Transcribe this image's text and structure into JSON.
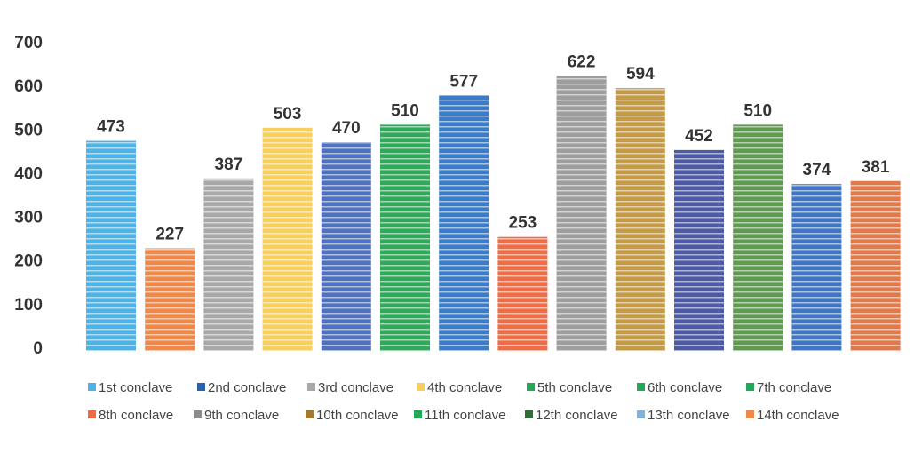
{
  "chart_data": {
    "type": "bar",
    "categories": [
      "1st conclave",
      "2nd conclave",
      "3rd conclave",
      "4th conclave",
      "5th conclave",
      "6th conclave",
      "7th conclave",
      "8th conclave",
      "9th conclave",
      "10th conclave",
      "11th conclave",
      "12th conclave",
      "13th conclave",
      "14th conclave"
    ],
    "values": [
      473,
      227,
      387,
      503,
      470,
      510,
      577,
      253,
      622,
      594,
      452,
      510,
      374,
      381
    ],
    "colors": [
      "#4db3e6",
      "#f0884a",
      "#a8a8a8",
      "#f7cf5a",
      "#4e72bd",
      "#2faa5a",
      "#3a7cc7",
      "#ef6c45",
      "#9e9e9e",
      "#c49a44",
      "#4d5ba6",
      "#5e9a4f",
      "#3f77c4",
      "#e07a4a"
    ],
    "legend_colors": [
      "#4db3e6",
      "#2b62ad",
      "#a8a8a8",
      "#f7cf5a",
      "#21a955",
      "#21a955",
      "#21a955",
      "#ef6c45",
      "#8c8c8c",
      "#a07a30",
      "#21a955",
      "#2f6e35",
      "#7fb2e0",
      "#f0884a"
    ],
    "yticks": [
      "0",
      "100",
      "200",
      "300",
      "400",
      "500",
      "600",
      "700"
    ],
    "ylim": [
      0,
      700
    ],
    "title": "",
    "xlabel": "",
    "ylabel": "",
    "grid": false,
    "legend_position": "bottom"
  }
}
